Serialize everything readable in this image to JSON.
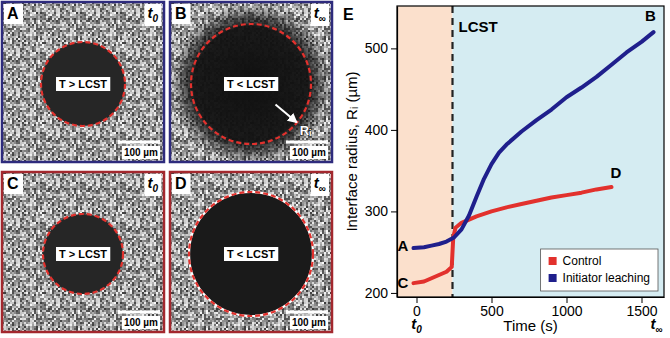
{
  "panels": [
    {
      "letter": "A",
      "time": {
        "base": "t",
        "sub": "0"
      },
      "label": "T > LCST",
      "scale_bar": "100 µm"
    },
    {
      "letter": "B",
      "time": {
        "base": "t",
        "sub": "∞"
      },
      "label": "T < LCST",
      "scale_bar": "100 µm",
      "radius_label": "Rᵢ"
    },
    {
      "letter": "C",
      "time": {
        "base": "t",
        "sub": "0"
      },
      "label": "T > LCST",
      "scale_bar": "100 µm"
    },
    {
      "letter": "D",
      "time": {
        "base": "t",
        "sub": "∞"
      },
      "label": "T < LCST",
      "scale_bar": "100 µm"
    }
  ],
  "chart_data": {
    "type": "line",
    "title": "E",
    "x_label": "Time (s)",
    "y_label": "Interface radius, Rᵢ (µm)",
    "xlim": [
      -130,
      1650
    ],
    "xticks": [
      0,
      500,
      1000,
      1500
    ],
    "ylim": [
      195,
      552
    ],
    "yticks": [
      200,
      300,
      400,
      500
    ],
    "legend": "bottom-right",
    "threshold": {
      "x": 240,
      "label": "LCST"
    },
    "series": [
      {
        "name": "Control",
        "color": "#e2312d",
        "line_style": "solid",
        "x": [
          -20,
          50,
          100,
          150,
          200,
          235,
          245,
          260,
          300,
          400,
          500,
          600,
          700,
          800,
          900,
          1000,
          1100,
          1200,
          1300
        ],
        "values": [
          212,
          214,
          218,
          222,
          226,
          232,
          268,
          280,
          286,
          294,
          300,
          305,
          309,
          313,
          317,
          320,
          323,
          327,
          330
        ]
      },
      {
        "name": "Initiator leaching",
        "color": "#1f1f8c",
        "line_style": "solid",
        "x": [
          -20,
          50,
          100,
          150,
          200,
          250,
          300,
          350,
          400,
          450,
          500,
          550,
          600,
          700,
          800,
          900,
          1000,
          1100,
          1200,
          1300,
          1400,
          1500,
          1580
        ],
        "values": [
          255,
          256,
          258,
          260,
          263,
          268,
          278,
          295,
          318,
          340,
          358,
          372,
          382,
          398,
          412,
          425,
          440,
          452,
          465,
          480,
          495,
          508,
          520
        ]
      }
    ],
    "annotations": [
      {
        "text": "A",
        "x": -90,
        "y": 258
      },
      {
        "text": "B",
        "x": 1560,
        "y": 540
      },
      {
        "text": "C",
        "x": -90,
        "y": 213
      },
      {
        "text": "D",
        "x": 1330,
        "y": 348
      }
    ],
    "time_labels": [
      {
        "base": "t",
        "sub": "0",
        "x": 0
      },
      {
        "base": "t",
        "sub": "∞",
        "x": 1600
      }
    ]
  }
}
